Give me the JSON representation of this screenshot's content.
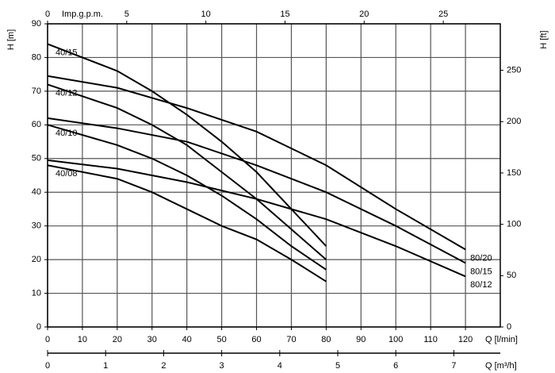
{
  "chart_data": {
    "type": "line",
    "ylabel": "H [m]",
    "y2label": "H [ft]",
    "xlabel": "Q [l/min]",
    "xlim": [
      0,
      130
    ],
    "xticks": [
      0,
      10,
      20,
      30,
      40,
      50,
      60,
      70,
      80,
      90,
      100,
      110,
      120
    ],
    "ylim": [
      0,
      90
    ],
    "yticks": [
      0,
      10,
      20,
      30,
      40,
      50,
      60,
      70,
      80,
      90
    ],
    "y2lim": [
      0,
      295.3
    ],
    "y2ticks": [
      0,
      50,
      100,
      150,
      200,
      250
    ],
    "top_axis": {
      "label": "Imp.g.p.m.",
      "xlim": [
        0,
        28.6
      ],
      "xticks": [
        0,
        5,
        10,
        15,
        20,
        25
      ]
    },
    "bottom_axis2": {
      "label": "Q [m³/h]",
      "xlim": [
        0,
        7.8
      ],
      "xticks": [
        0,
        1,
        2,
        3,
        4,
        5,
        6,
        7
      ]
    },
    "grid": true,
    "series": [
      {
        "name": "40/15",
        "color": "#000000",
        "x": [
          0,
          20,
          30,
          40,
          50,
          60,
          70,
          80
        ],
        "values": [
          84,
          76,
          70,
          63,
          55,
          46,
          35,
          24
        ]
      },
      {
        "name": "40/12",
        "color": "#000000",
        "x": [
          0,
          20,
          30,
          40,
          50,
          60,
          70,
          80
        ],
        "values": [
          72,
          65,
          60,
          54,
          46,
          38,
          29,
          20
        ]
      },
      {
        "name": "40/10",
        "color": "#000000",
        "x": [
          0,
          20,
          30,
          40,
          50,
          60,
          70,
          80
        ],
        "values": [
          60,
          54,
          50,
          45,
          39,
          32,
          24,
          17
        ]
      },
      {
        "name": "40/08",
        "color": "#000000",
        "x": [
          0,
          20,
          30,
          40,
          50,
          60,
          70,
          80
        ],
        "values": [
          48,
          44,
          40,
          35,
          30,
          26,
          20,
          13.5
        ]
      },
      {
        "name": "80/20",
        "color": "#000000",
        "x": [
          0,
          20,
          40,
          60,
          80,
          100,
          120
        ],
        "values": [
          74.5,
          71,
          65,
          58,
          48,
          35,
          23
        ]
      },
      {
        "name": "80/15",
        "color": "#000000",
        "x": [
          0,
          20,
          40,
          60,
          80,
          100,
          120
        ],
        "values": [
          62,
          59,
          55,
          48,
          40,
          30,
          19
        ]
      },
      {
        "name": "80/12",
        "color": "#000000",
        "x": [
          0,
          20,
          40,
          60,
          80,
          100,
          120
        ],
        "values": [
          49.5,
          47,
          43,
          38,
          32,
          24,
          15
        ]
      }
    ]
  }
}
